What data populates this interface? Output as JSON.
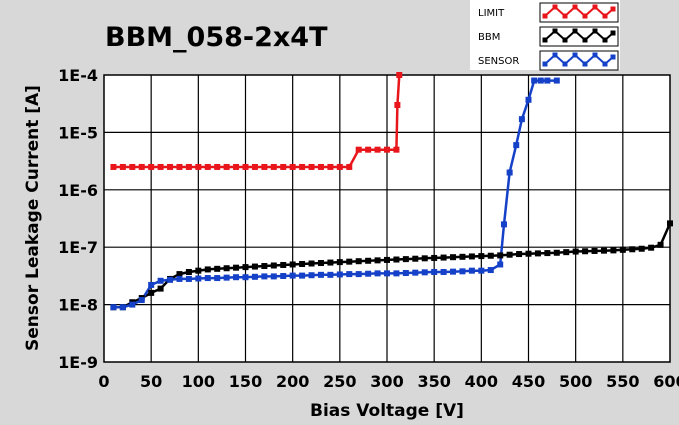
{
  "chart_data": {
    "type": "line",
    "title": "BBM_058-2x4T",
    "xlabel": "Bias Voltage [V]",
    "ylabel": "Sensor Leakage Current [A]",
    "xlim": [
      0,
      600
    ],
    "ylim": [
      1e-09,
      0.0001
    ],
    "yscale": "log",
    "grid": true,
    "legend_position": "top-right",
    "x_ticks": [
      "0",
      "50",
      "100",
      "150",
      "200",
      "250",
      "300",
      "350",
      "400",
      "450",
      "500",
      "550",
      "600"
    ],
    "y_ticks": [
      "1E-9",
      "1E-8",
      "1E-7",
      "1E-6",
      "1E-5",
      "1E-4"
    ],
    "series": [
      {
        "name": "LIMIT",
        "color": "#e8161b",
        "x": [
          10,
          20,
          30,
          40,
          50,
          60,
          70,
          80,
          90,
          100,
          110,
          120,
          130,
          140,
          150,
          160,
          170,
          180,
          190,
          200,
          210,
          220,
          230,
          240,
          250,
          260,
          270,
          280,
          290,
          300,
          310,
          311,
          313
        ],
        "y": [
          2.5e-06,
          2.5e-06,
          2.5e-06,
          2.5e-06,
          2.5e-06,
          2.5e-06,
          2.5e-06,
          2.5e-06,
          2.5e-06,
          2.5e-06,
          2.5e-06,
          2.5e-06,
          2.5e-06,
          2.5e-06,
          2.5e-06,
          2.5e-06,
          2.5e-06,
          2.5e-06,
          2.5e-06,
          2.5e-06,
          2.5e-06,
          2.5e-06,
          2.5e-06,
          2.5e-06,
          2.5e-06,
          2.5e-06,
          5e-06,
          5e-06,
          5e-06,
          5e-06,
          5e-06,
          3e-05,
          0.0001
        ]
      },
      {
        "name": "BBM",
        "color": "#000000",
        "x": [
          10,
          20,
          30,
          40,
          50,
          60,
          70,
          80,
          90,
          100,
          110,
          120,
          130,
          140,
          150,
          160,
          170,
          180,
          190,
          200,
          210,
          220,
          230,
          240,
          250,
          260,
          270,
          280,
          290,
          300,
          310,
          320,
          330,
          340,
          350,
          360,
          370,
          380,
          390,
          400,
          410,
          420,
          430,
          440,
          450,
          460,
          470,
          480,
          490,
          500,
          510,
          520,
          530,
          540,
          550,
          560,
          570,
          580,
          590,
          600
        ],
        "y": [
          9e-09,
          9e-09,
          1.1e-08,
          1.3e-08,
          1.6e-08,
          1.9e-08,
          2.8e-08,
          3.4e-08,
          3.7e-08,
          3.9e-08,
          4.1e-08,
          4.2e-08,
          4.3e-08,
          4.4e-08,
          4.5e-08,
          4.6e-08,
          4.7e-08,
          4.8e-08,
          4.9e-08,
          5e-08,
          5.1e-08,
          5.2e-08,
          5.3e-08,
          5.4e-08,
          5.5e-08,
          5.6e-08,
          5.7e-08,
          5.8e-08,
          5.9e-08,
          6e-08,
          6.1e-08,
          6.2e-08,
          6.3e-08,
          6.4e-08,
          6.5e-08,
          6.6e-08,
          6.7e-08,
          6.8e-08,
          6.9e-08,
          7e-08,
          7.1e-08,
          7.2e-08,
          7.4e-08,
          7.6e-08,
          7.7e-08,
          7.8e-08,
          7.9e-08,
          8e-08,
          8.2e-08,
          8.4e-08,
          8.5e-08,
          8.6e-08,
          8.7e-08,
          8.8e-08,
          9e-08,
          9.2e-08,
          9.4e-08,
          9.8e-08,
          1.1e-07,
          2.6e-07
        ]
      },
      {
        "name": "SENSOR",
        "color": "#1540c8",
        "x": [
          10,
          20,
          30,
          40,
          50,
          60,
          70,
          80,
          90,
          100,
          110,
          120,
          130,
          140,
          150,
          160,
          170,
          180,
          190,
          200,
          210,
          220,
          230,
          240,
          250,
          260,
          270,
          280,
          290,
          300,
          310,
          320,
          330,
          340,
          350,
          360,
          370,
          380,
          390,
          400,
          410,
          420,
          424,
          430,
          437,
          443,
          450,
          456,
          463,
          470,
          480
        ],
        "y": [
          9e-09,
          9e-09,
          1e-08,
          1.2e-08,
          2.2e-08,
          2.6e-08,
          2.7e-08,
          2.8e-08,
          2.8e-08,
          2.85e-08,
          2.9e-08,
          2.9e-08,
          2.95e-08,
          3e-08,
          3e-08,
          3.05e-08,
          3.1e-08,
          3.1e-08,
          3.15e-08,
          3.2e-08,
          3.2e-08,
          3.25e-08,
          3.3e-08,
          3.3e-08,
          3.35e-08,
          3.4e-08,
          3.4e-08,
          3.45e-08,
          3.5e-08,
          3.5e-08,
          3.5e-08,
          3.55e-08,
          3.6e-08,
          3.65e-08,
          3.7e-08,
          3.7e-08,
          3.75e-08,
          3.8e-08,
          3.9e-08,
          3.9e-08,
          4e-08,
          5e-08,
          2.5e-07,
          2e-06,
          6e-06,
          1.7e-05,
          3.7e-05,
          8e-05,
          8e-05,
          8e-05,
          8e-05
        ]
      }
    ]
  }
}
